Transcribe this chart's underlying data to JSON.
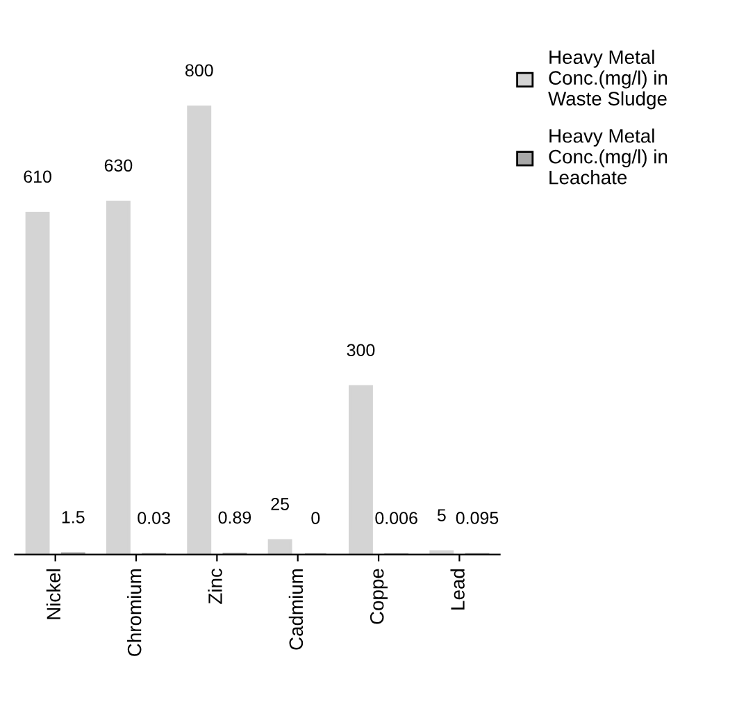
{
  "chart_data": {
    "type": "bar",
    "categories": [
      "Nickel",
      "Chromium",
      "Zinc",
      "Cadmium",
      "Coppe",
      "Lead"
    ],
    "series": [
      {
        "name": "Heavy Metal Conc.(mg/l) in Waste Sludge",
        "color": "#d4d4d4",
        "values": [
          610,
          630,
          800,
          25,
          300,
          5
        ]
      },
      {
        "name": "Heavy Metal Conc.(mg/l) in Leachate",
        "color": "#a8a8a8",
        "values": [
          1.5,
          0.03,
          0.89,
          0,
          0.006,
          0.095
        ]
      }
    ],
    "data_labels": true,
    "legend": "top right",
    "grid": false
  }
}
